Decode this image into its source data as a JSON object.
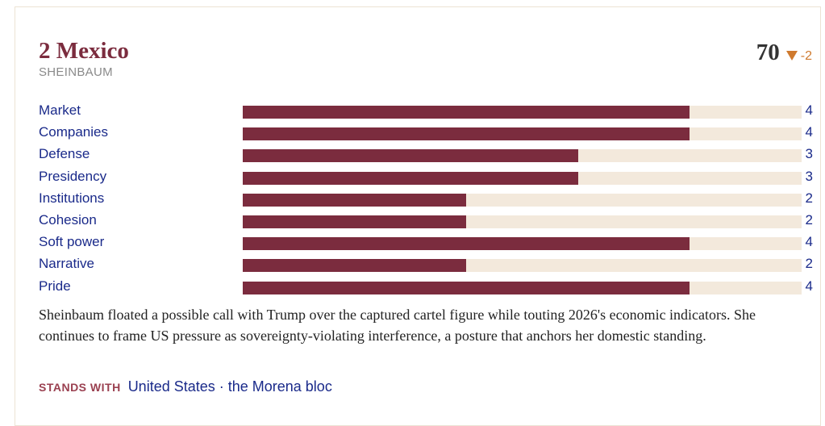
{
  "country": {
    "title": "2 Mexico",
    "leader": "SHEINBAUM"
  },
  "score": {
    "value": "70",
    "delta": "-2",
    "trend": "down",
    "trend_color": "#cf7a2e"
  },
  "colors": {
    "bar_fill": "#7b2c3e",
    "bar_track": "#f3e9dc",
    "label": "#1a2a8a",
    "title": "#7b2c3e"
  },
  "scale_max": 5,
  "metrics": [
    {
      "label": "Market",
      "value": 4
    },
    {
      "label": "Companies",
      "value": 4
    },
    {
      "label": "Defense",
      "value": 3
    },
    {
      "label": "Presidency",
      "value": 3
    },
    {
      "label": "Institutions",
      "value": 2
    },
    {
      "label": "Cohesion",
      "value": 2
    },
    {
      "label": "Soft power",
      "value": 4
    },
    {
      "label": "Narrative",
      "value": 2
    },
    {
      "label": "Pride",
      "value": 4
    }
  ],
  "summary": "Sheinbaum floated a possible call with Trump over the captured cartel figure while touting 2026's economic indicators. She continues to frame US pressure as sovereignty-violating interference, a posture that anchors her domestic standing.",
  "stands_with": {
    "label": "STANDS WITH",
    "value": "United States · the Morena bloc"
  }
}
